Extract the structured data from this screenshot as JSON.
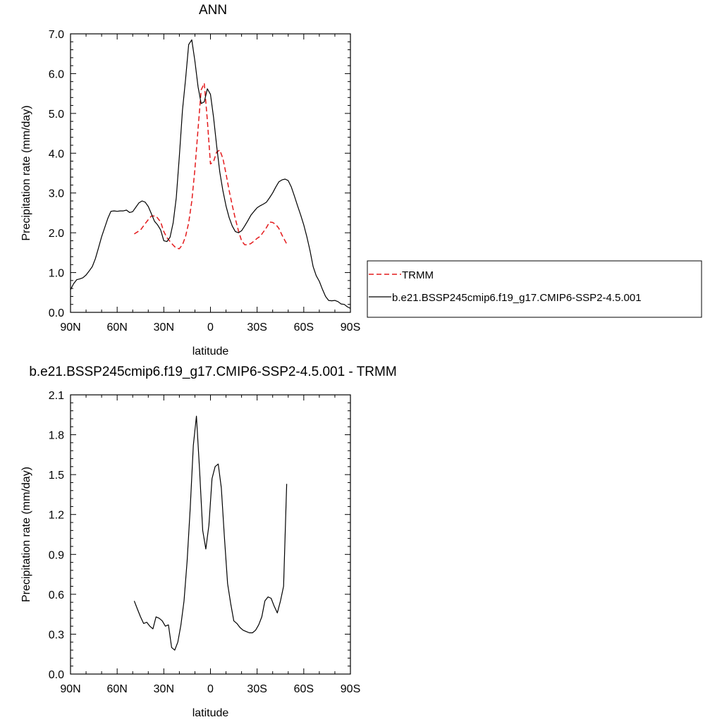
{
  "chart_data": [
    {
      "type": "line",
      "title": "ANN",
      "xlabel": "latitude",
      "ylabel": "Precipitation rate (mm/day)",
      "xlim": [
        90,
        -90
      ],
      "ylim": [
        0,
        7
      ],
      "x_ticks": [
        90,
        60,
        30,
        0,
        -30,
        -60,
        -90
      ],
      "x_tick_labels": [
        "90N",
        "60N",
        "30N",
        "0",
        "30S",
        "60S",
        "90S"
      ],
      "y_ticks": [
        0,
        1,
        2,
        3,
        4,
        5,
        6,
        7
      ],
      "y_tick_labels": [
        "0.0",
        "1.0",
        "2.0",
        "3.0",
        "4.0",
        "5.0",
        "6.0",
        "7.0"
      ],
      "legend_position": "right",
      "series": [
        {
          "name": "TRMM",
          "color": "#e41a1c",
          "dash": "dashed",
          "x": [
            49,
            45,
            42,
            40,
            38,
            35,
            32,
            30,
            28,
            26,
            24,
            22,
            20,
            18,
            16,
            14,
            12,
            10,
            8,
            6,
            4,
            2,
            0,
            -2,
            -4,
            -6,
            -8,
            -10,
            -12,
            -14,
            -16,
            -18,
            -20,
            -22,
            -24,
            -26,
            -28,
            -30,
            -32,
            -34,
            -36,
            -38,
            -40,
            -42,
            -44,
            -46,
            -49
          ],
          "y": [
            1.97,
            2.07,
            2.23,
            2.33,
            2.42,
            2.42,
            2.27,
            2.03,
            1.88,
            1.78,
            1.69,
            1.61,
            1.6,
            1.7,
            1.91,
            2.25,
            2.79,
            3.59,
            4.61,
            5.59,
            5.76,
            4.82,
            3.73,
            3.79,
            4.03,
            4.08,
            3.87,
            3.48,
            3.06,
            2.69,
            2.35,
            2.05,
            1.8,
            1.7,
            1.7,
            1.73,
            1.79,
            1.86,
            1.91,
            2.02,
            2.13,
            2.27,
            2.26,
            2.21,
            2.11,
            1.94,
            1.72
          ]
        },
        {
          "name": "b.e21.BSSP245cmip6.f19_g17.CMIP6-SSP2-4.5.001",
          "color": "#000000",
          "dash": "solid",
          "x": [
            90,
            88,
            86,
            84,
            82,
            80,
            78,
            76,
            74,
            72,
            70,
            68,
            66,
            64,
            62,
            60,
            58,
            56,
            54,
            52,
            50,
            48,
            46,
            44,
            42,
            40,
            38,
            36,
            34,
            32,
            30,
            28,
            26,
            24,
            22,
            20,
            18,
            16,
            14,
            12,
            10,
            8,
            6,
            4,
            2,
            0,
            -2,
            -4,
            -6,
            -8,
            -10,
            -12,
            -14,
            -16,
            -18,
            -20,
            -22,
            -24,
            -26,
            -28,
            -30,
            -32,
            -34,
            -36,
            -38,
            -40,
            -42,
            -44,
            -46,
            -48,
            -50,
            -52,
            -54,
            -56,
            -58,
            -60,
            -62,
            -64,
            -66,
            -68,
            -70,
            -72,
            -74,
            -76,
            -78,
            -80,
            -82,
            -84,
            -86,
            -88,
            -90
          ],
          "y": [
            0.57,
            0.72,
            0.82,
            0.84,
            0.87,
            0.94,
            1.04,
            1.15,
            1.35,
            1.62,
            1.9,
            2.13,
            2.36,
            2.54,
            2.55,
            2.54,
            2.55,
            2.55,
            2.57,
            2.51,
            2.53,
            2.64,
            2.75,
            2.8,
            2.77,
            2.66,
            2.48,
            2.29,
            2.2,
            2.07,
            1.8,
            1.78,
            1.89,
            2.25,
            2.88,
            3.93,
            5.08,
            5.86,
            6.73,
            6.85,
            6.32,
            5.67,
            5.25,
            5.29,
            5.62,
            5.48,
            4.9,
            4.18,
            3.53,
            3.06,
            2.67,
            2.38,
            2.17,
            2.03,
            2.0,
            2.05,
            2.17,
            2.3,
            2.44,
            2.54,
            2.63,
            2.68,
            2.72,
            2.77,
            2.88,
            3.0,
            3.15,
            3.28,
            3.33,
            3.35,
            3.31,
            3.15,
            2.92,
            2.68,
            2.45,
            2.2,
            1.9,
            1.55,
            1.15,
            0.92,
            0.78,
            0.58,
            0.4,
            0.3,
            0.29,
            0.3,
            0.27,
            0.21,
            0.2,
            0.14,
            0.1
          ]
        }
      ]
    },
    {
      "type": "line",
      "title": "b.e21.BSSP245cmip6.f19_g17.CMIP6-SSP2-4.5.001 - TRMM",
      "xlabel": "latitude",
      "ylabel": "Precipitation rate (mm/day)",
      "xlim": [
        90,
        -90
      ],
      "ylim": [
        0,
        2.1
      ],
      "x_ticks": [
        90,
        60,
        30,
        0,
        -30,
        -60,
        -90
      ],
      "x_tick_labels": [
        "90N",
        "60N",
        "30N",
        "0",
        "30S",
        "60S",
        "90S"
      ],
      "y_ticks": [
        0,
        0.3,
        0.6,
        0.9,
        1.2,
        1.5,
        1.8,
        2.1
      ],
      "y_tick_labels": [
        "0.0",
        "0.3",
        "0.6",
        "0.9",
        "1.2",
        "1.5",
        "1.8",
        "2.1"
      ],
      "series": [
        {
          "color": "#000000",
          "dash": "solid",
          "x": [
            49,
            47,
            45,
            43,
            41,
            39,
            37,
            35,
            33,
            31,
            29,
            27,
            25,
            23,
            21,
            19,
            17,
            15,
            13,
            11,
            9,
            7,
            5,
            3,
            1,
            -1,
            -3,
            -5,
            -7,
            -9,
            -11,
            -13,
            -15,
            -17,
            -19,
            -21,
            -23,
            -25,
            -27,
            -29,
            -31,
            -33,
            -35,
            -37,
            -39,
            -41,
            -43,
            -45,
            -47,
            -49
          ],
          "y": [
            0.55,
            0.49,
            0.43,
            0.38,
            0.39,
            0.36,
            0.34,
            0.43,
            0.42,
            0.4,
            0.36,
            0.37,
            0.2,
            0.18,
            0.24,
            0.37,
            0.55,
            0.85,
            1.25,
            1.72,
            1.94,
            1.53,
            1.08,
            0.94,
            1.12,
            1.47,
            1.56,
            1.58,
            1.4,
            1.02,
            0.68,
            0.53,
            0.4,
            0.38,
            0.35,
            0.33,
            0.32,
            0.31,
            0.31,
            0.33,
            0.37,
            0.43,
            0.55,
            0.58,
            0.57,
            0.51,
            0.46,
            0.55,
            0.66,
            1.43
          ]
        }
      ]
    }
  ]
}
